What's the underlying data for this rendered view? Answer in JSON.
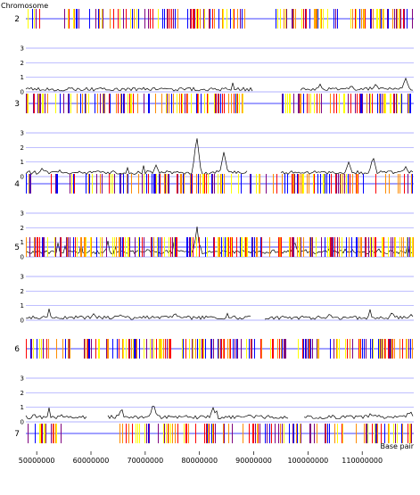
{
  "chart_data": {
    "type": "genome-track",
    "y_axis_title": "Chromosome",
    "x_axis_title": "Base pair",
    "x_range": [
      48000000,
      119500000
    ],
    "x_ticks": [
      {
        "value": 50000000,
        "label": "50000000"
      },
      {
        "value": 60000000,
        "label": "60000000"
      },
      {
        "value": 70000000,
        "label": "70000000"
      },
      {
        "value": 80000000,
        "label": "80000000"
      },
      {
        "value": 90000000,
        "label": "90000000"
      },
      {
        "value": 100000000,
        "label": "100000000"
      },
      {
        "value": 110000000,
        "label": "110000000"
      }
    ],
    "density_y_ticks": [
      "0",
      "1",
      "2",
      "3"
    ],
    "density_y_range": [
      0,
      3
    ],
    "marker_colors": [
      "#ffff00",
      "#ff8c00",
      "#ff0000",
      "#7f007f",
      "#0000ff"
    ],
    "axis_color": "#0000ff",
    "grid_color": "#9999ff",
    "line_color": "#000000",
    "chromosomes": [
      {
        "label": "2",
        "seed": 11,
        "density": 0.78,
        "gaps": [
          [
            58000000,
            59500000
          ],
          [
            76000000,
            77500000
          ],
          [
            89000000,
            93500000
          ]
        ],
        "profile": {
          "seed": 21,
          "base": 0.05,
          "peaks": [
            [
              57500000,
              0.12
            ],
            [
              80500000,
              0.15
            ],
            [
              112500000,
              0.55
            ],
            [
              118000000,
              0.95
            ],
            [
              108000000,
              0.45
            ]
          ],
          "breaks": [
            [
              90000000,
              98500000
            ]
          ]
        }
      },
      {
        "label": "3",
        "seed": 12,
        "density": 0.82,
        "gaps": [
          [
            88500000,
            95000000
          ]
        ],
        "profile": {
          "seed": 22,
          "base": 0.15,
          "peaks": [
            [
              51000000,
              0.6
            ],
            [
              64000000,
              0.45
            ],
            [
              72000000,
              0.8
            ],
            [
              79500000,
              2.8
            ],
            [
              84500000,
              1.7
            ],
            [
              107500000,
              1.0
            ],
            [
              112000000,
              1.4
            ],
            [
              118000000,
              0.7
            ]
          ],
          "breaks": [
            [
              89000000,
              95000000
            ]
          ]
        }
      },
      {
        "label": "4",
        "seed": 13,
        "density": 0.85,
        "gaps": [
          [
            49000000,
            52500000
          ]
        ],
        "profile": {
          "seed": 23,
          "base": 0.2,
          "peaks": [
            [
              56000000,
              0.4
            ],
            [
              63000000,
              0.7
            ],
            [
              70500000,
              0.6
            ],
            [
              79500000,
              1.7
            ],
            [
              88000000,
              0.5
            ],
            [
              97500000,
              1.1
            ],
            [
              113000000,
              0.6
            ]
          ],
          "breaks": []
        }
      },
      {
        "label": "5",
        "seed": 14,
        "density": 0.85,
        "gaps": [
          [
            52000000,
            53000000
          ],
          [
            91500000,
            92500000
          ]
        ],
        "profile": {
          "seed": 24,
          "base": 0.05,
          "peaks": [
            [
              60500000,
              0.45
            ],
            [
              65500000,
              0.4
            ],
            [
              75500000,
              0.5
            ],
            [
              104000000,
              0.45
            ],
            [
              115500000,
              0.55
            ],
            [
              119000000,
              0.4
            ]
          ],
          "breaks": [
            [
              89500000,
              92000000
            ]
          ]
        }
      },
      {
        "label": "6",
        "seed": 15,
        "density": 0.85,
        "gaps": [
          [
            56500000,
            58500000
          ],
          [
            96000000,
            97500000
          ]
        ],
        "profile": {
          "seed": 25,
          "base": 0.2,
          "peaks": [
            [
              49500000,
              0.6
            ],
            [
              56500000,
              0.3
            ],
            [
              65500000,
              0.8
            ],
            [
              71500000,
              1.3
            ],
            [
              82500000,
              1.0
            ],
            [
              89500000,
              0.5
            ],
            [
              112500000,
              0.5
            ],
            [
              118500000,
              0.7
            ]
          ],
          "breaks": [
            [
              59500000,
              63000000
            ],
            [
              96500000,
              99000000
            ]
          ]
        }
      },
      {
        "label": "7",
        "seed": 16,
        "density": 0.75,
        "gaps": [
          [
            56500000,
            64500000
          ],
          [
            79500000,
            80500000
          ]
        ],
        "profile": null
      }
    ]
  }
}
